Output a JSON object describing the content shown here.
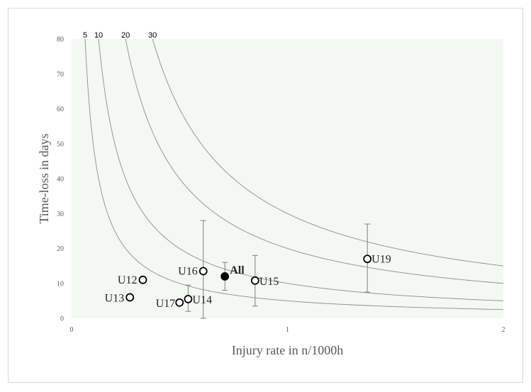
{
  "chart_data": {
    "type": "scatter",
    "xlabel": "Injury rate in n/1000h",
    "ylabel": "Time-loss in days",
    "xlim": [
      0,
      2
    ],
    "ylim": [
      0,
      80
    ],
    "x_ticks": [
      "0",
      "1",
      "2"
    ],
    "y_ticks": [
      "0",
      "10",
      "20",
      "30",
      "40",
      "50",
      "60",
      "70",
      "80"
    ],
    "plot_background": "#f3f8f3",
    "grid": false,
    "curves": [
      {
        "label": "5",
        "product": 5
      },
      {
        "label": "10",
        "product": 10
      },
      {
        "label": "20",
        "product": 20
      },
      {
        "label": "30",
        "product": 30
      }
    ],
    "points": [
      {
        "label": "U12",
        "x": 0.33,
        "y": 11,
        "filled": false
      },
      {
        "label": "U13",
        "x": 0.27,
        "y": 6,
        "filled": false
      },
      {
        "label": "U14",
        "x": 0.54,
        "y": 5.5,
        "filled": false,
        "err_low": 2,
        "err_high": 9.5
      },
      {
        "label": "U15",
        "x": 0.85,
        "y": 10.8,
        "filled": false,
        "err_low": 3.5,
        "err_high": 18
      },
      {
        "label": "U16",
        "x": 0.61,
        "y": 13.5,
        "filled": false,
        "err_low": 0,
        "err_high": 28
      },
      {
        "label": "U17",
        "x": 0.5,
        "y": 4.5,
        "filled": false
      },
      {
        "label": "U19",
        "x": 1.37,
        "y": 17,
        "filled": false,
        "err_low": 7.5,
        "err_high": 27
      },
      {
        "label": "All",
        "x": 0.71,
        "y": 12,
        "filled": true,
        "err_low": 8,
        "err_high": 16
      }
    ]
  }
}
